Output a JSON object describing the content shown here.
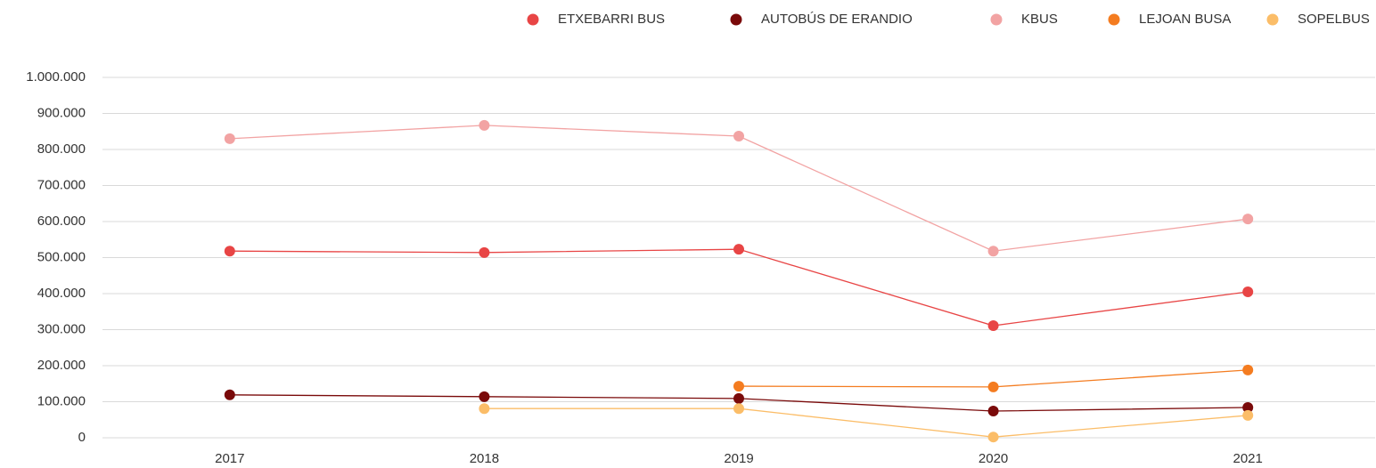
{
  "chart_data": {
    "type": "line",
    "categories": [
      "2017",
      "2018",
      "2019",
      "2020",
      "2021"
    ],
    "series": [
      {
        "name": "ETXEBARRI BUS",
        "color": "#e84545",
        "values": [
          518000,
          514000,
          523000,
          311000,
          405000
        ]
      },
      {
        "name": "AUTOBÚS DE ERANDIO",
        "color": "#7a0a0a",
        "values": [
          119000,
          114000,
          109000,
          74000,
          84000
        ]
      },
      {
        "name": "KBUS",
        "color": "#f2a3a3",
        "values": [
          830000,
          867000,
          837000,
          518000,
          607000
        ]
      },
      {
        "name": "LEJOAN BUSA",
        "color": "#f47c20",
        "values": [
          null,
          null,
          143000,
          141000,
          188000
        ]
      },
      {
        "name": "SOPELBUS",
        "color": "#fbbd68",
        "values": [
          null,
          81000,
          81000,
          2000,
          62000
        ]
      }
    ],
    "ylim": [
      0,
      1000000
    ],
    "yticks": [
      0,
      {
        "value": 100000,
        "label": "100.000"
      },
      {
        "value": 200000,
        "label": "200.000"
      },
      {
        "value": 300000,
        "label": "300.000"
      },
      {
        "value": 400000,
        "label": "400.000"
      },
      {
        "value": 500000,
        "label": "500.000"
      },
      {
        "value": 600000,
        "label": "600.000"
      },
      {
        "value": 700000,
        "label": "700.000"
      },
      {
        "value": 800000,
        "label": "800.000"
      },
      {
        "value": 900000,
        "label": "900.000"
      },
      {
        "value": 1000000,
        "label": "1.000.000"
      }
    ],
    "grid": true,
    "legend": "top-right"
  }
}
